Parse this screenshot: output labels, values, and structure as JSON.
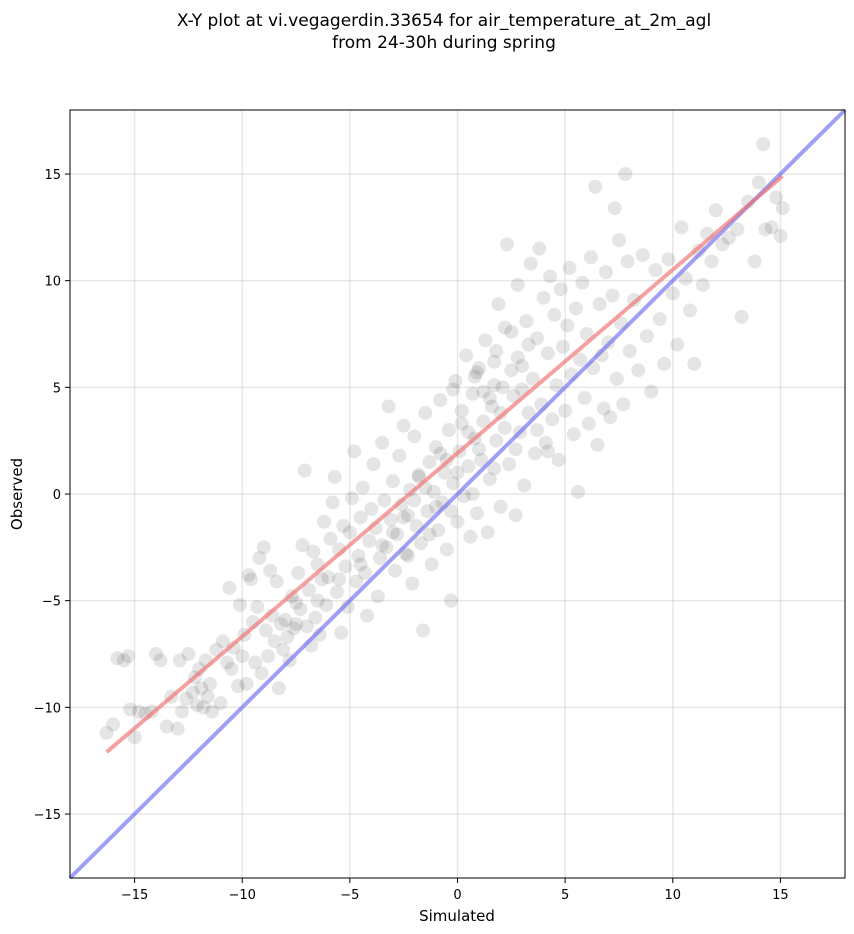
{
  "chart_data": {
    "type": "scatter",
    "title_line1": "X-Y plot at vi.vegagerdin.33654 for air_temperature_at_2m_agl",
    "title_line2": "from 24-30h during spring",
    "xlabel": "Simulated",
    "ylabel": "Observed",
    "xlim": [
      -18,
      18
    ],
    "ylim": [
      -18,
      18
    ],
    "xticks": [
      -15,
      -10,
      -5,
      0,
      5,
      10,
      15
    ],
    "yticks": [
      -15,
      -10,
      -5,
      0,
      5,
      10,
      15
    ],
    "xtick_labels": [
      "−15",
      "−10",
      "−5",
      "0",
      "5",
      "10",
      "15"
    ],
    "ytick_labels": [
      "−15",
      "−10",
      "−5",
      "0",
      "5",
      "10",
      "15"
    ],
    "grid": true,
    "point_color": "#000000",
    "point_opacity": 0.1,
    "points": [
      [
        -16.3,
        -11.2
      ],
      [
        -16.0,
        -10.8
      ],
      [
        -15.8,
        -7.7
      ],
      [
        -15.5,
        -7.8
      ],
      [
        -15.3,
        -7.6
      ],
      [
        -15.2,
        -10.1
      ],
      [
        -15.0,
        -11.4
      ],
      [
        -14.8,
        -10.2
      ],
      [
        -14.5,
        -10.3
      ],
      [
        -14.2,
        -10.2
      ],
      [
        -14.0,
        -7.5
      ],
      [
        -13.8,
        -7.8
      ],
      [
        -13.5,
        -10.9
      ],
      [
        -13.3,
        -9.5
      ],
      [
        -13.0,
        -11.0
      ],
      [
        -12.9,
        -7.8
      ],
      [
        -12.8,
        -10.2
      ],
      [
        -12.6,
        -9.6
      ],
      [
        -12.5,
        -7.5
      ],
      [
        -12.3,
        -9.3
      ],
      [
        -12.2,
        -8.6
      ],
      [
        -12.1,
        -9.9
      ],
      [
        -12.0,
        -8.2
      ],
      [
        -11.9,
        -9.1
      ],
      [
        -11.8,
        -10.0
      ],
      [
        -11.7,
        -7.8
      ],
      [
        -11.6,
        -9.5
      ],
      [
        -11.5,
        -8.9
      ],
      [
        -11.4,
        -10.2
      ],
      [
        -11.2,
        -7.3
      ],
      [
        -11.0,
        -9.8
      ],
      [
        -10.9,
        -6.9
      ],
      [
        -10.7,
        -7.9
      ],
      [
        -10.6,
        -4.4
      ],
      [
        -10.5,
        -8.2
      ],
      [
        -10.4,
        -7.2
      ],
      [
        -10.2,
        -9.0
      ],
      [
        -10.1,
        -5.2
      ],
      [
        -10.0,
        -7.6
      ],
      [
        -9.9,
        -6.6
      ],
      [
        -9.8,
        -8.9
      ],
      [
        -9.7,
        -3.8
      ],
      [
        -9.6,
        -4.0
      ],
      [
        -9.5,
        -6.0
      ],
      [
        -9.4,
        -7.9
      ],
      [
        -9.3,
        -5.3
      ],
      [
        -9.2,
        -3.0
      ],
      [
        -9.1,
        -8.4
      ],
      [
        -9.0,
        -2.5
      ],
      [
        -8.9,
        -6.4
      ],
      [
        -8.8,
        -7.6
      ],
      [
        -8.7,
        -3.6
      ],
      [
        -8.6,
        -5.7
      ],
      [
        -8.5,
        -6.9
      ],
      [
        -8.4,
        -4.1
      ],
      [
        -8.3,
        -9.1
      ],
      [
        -8.2,
        -6.1
      ],
      [
        -8.1,
        -7.3
      ],
      [
        -8.0,
        -5.9
      ],
      [
        -7.9,
        -6.7
      ],
      [
        -7.8,
        -7.8
      ],
      [
        -7.7,
        -4.8
      ],
      [
        -7.6,
        -6.3
      ],
      [
        -7.5,
        -5.1
      ],
      [
        -7.4,
        -3.7
      ],
      [
        -7.3,
        -5.4
      ],
      [
        -7.2,
        -2.4
      ],
      [
        -7.1,
        1.1
      ],
      [
        -7.0,
        -6.2
      ],
      [
        -6.9,
        -4.5
      ],
      [
        -6.8,
        -7.1
      ],
      [
        -6.7,
        -2.7
      ],
      [
        -6.6,
        -5.8
      ],
      [
        -6.5,
        -3.3
      ],
      [
        -6.4,
        -6.6
      ],
      [
        -6.3,
        -4.0
      ],
      [
        -6.2,
        -1.3
      ],
      [
        -6.1,
        -5.2
      ],
      [
        -6.0,
        -3.9
      ],
      [
        -5.9,
        -2.1
      ],
      [
        -5.8,
        -0.4
      ],
      [
        -5.7,
        0.8
      ],
      [
        -5.6,
        -4.6
      ],
      [
        -5.5,
        -2.6
      ],
      [
        -5.4,
        -6.5
      ],
      [
        -5.3,
        -1.5
      ],
      [
        -5.2,
        -3.4
      ],
      [
        -5.1,
        -5.3
      ],
      [
        -5.0,
        -1.8
      ],
      [
        -4.9,
        -0.2
      ],
      [
        -4.8,
        2.0
      ],
      [
        -4.7,
        -4.1
      ],
      [
        -4.6,
        -2.9
      ],
      [
        -4.5,
        -1.1
      ],
      [
        -4.4,
        0.3
      ],
      [
        -4.3,
        -3.7
      ],
      [
        -4.2,
        -5.7
      ],
      [
        -4.1,
        -2.2
      ],
      [
        -4.0,
        -0.7
      ],
      [
        -3.9,
        1.4
      ],
      [
        -3.8,
        -1.6
      ],
      [
        -3.7,
        -4.8
      ],
      [
        -3.6,
        -3.0
      ],
      [
        -3.5,
        2.4
      ],
      [
        -3.4,
        -0.3
      ],
      [
        -3.3,
        -2.5
      ],
      [
        -3.2,
        4.1
      ],
      [
        -3.1,
        -1.2
      ],
      [
        -3.0,
        0.6
      ],
      [
        -2.9,
        -3.6
      ],
      [
        -2.8,
        -1.9
      ],
      [
        -2.7,
        1.8
      ],
      [
        -2.6,
        -0.5
      ],
      [
        -2.5,
        3.2
      ],
      [
        -2.4,
        -2.8
      ],
      [
        -2.3,
        -1.0
      ],
      [
        -2.2,
        0.2
      ],
      [
        -2.1,
        -4.2
      ],
      [
        -2.0,
        2.7
      ],
      [
        -1.9,
        -1.5
      ],
      [
        -1.8,
        0.9
      ],
      [
        -1.7,
        -2.3
      ],
      [
        -1.6,
        -6.4
      ],
      [
        -1.5,
        3.8
      ],
      [
        -1.4,
        -0.8
      ],
      [
        -1.3,
        1.5
      ],
      [
        -1.2,
        -3.3
      ],
      [
        -1.1,
        0.1
      ],
      [
        -1.0,
        2.2
      ],
      [
        -0.9,
        -1.7
      ],
      [
        -0.8,
        4.4
      ],
      [
        -0.7,
        -0.4
      ],
      [
        -0.6,
        1.0
      ],
      [
        -0.5,
        -2.6
      ],
      [
        -0.4,
        3.0
      ],
      [
        -0.3,
        -5.0
      ],
      [
        -0.2,
        0.5
      ],
      [
        -0.1,
        5.3
      ],
      [
        0.0,
        -1.3
      ],
      [
        0.1,
        2.0
      ],
      [
        0.2,
        3.9
      ],
      [
        0.3,
        -0.1
      ],
      [
        0.4,
        6.5
      ],
      [
        0.5,
        1.3
      ],
      [
        0.6,
        -2.0
      ],
      [
        0.7,
        4.7
      ],
      [
        0.8,
        2.6
      ],
      [
        0.9,
        -0.9
      ],
      [
        1.0,
        5.9
      ],
      [
        1.1,
        1.6
      ],
      [
        1.2,
        3.4
      ],
      [
        1.3,
        7.2
      ],
      [
        1.4,
        -1.8
      ],
      [
        1.5,
        0.7
      ],
      [
        1.6,
        4.1
      ],
      [
        1.7,
        6.2
      ],
      [
        1.8,
        2.5
      ],
      [
        1.9,
        8.9
      ],
      [
        2.0,
        -0.6
      ],
      [
        2.1,
        5.0
      ],
      [
        2.2,
        3.1
      ],
      [
        2.3,
        11.7
      ],
      [
        2.4,
        1.4
      ],
      [
        2.5,
        7.6
      ],
      [
        2.6,
        4.6
      ],
      [
        2.7,
        -1.0
      ],
      [
        2.8,
        9.8
      ],
      [
        2.9,
        2.9
      ],
      [
        3.0,
        6.0
      ],
      [
        3.1,
        0.4
      ],
      [
        3.2,
        8.1
      ],
      [
        3.3,
        3.8
      ],
      [
        3.4,
        10.8
      ],
      [
        3.5,
        5.4
      ],
      [
        3.6,
        1.9
      ],
      [
        3.7,
        7.3
      ],
      [
        3.8,
        11.5
      ],
      [
        3.9,
        4.2
      ],
      [
        4.0,
        9.2
      ],
      [
        4.1,
        2.4
      ],
      [
        4.2,
        6.6
      ],
      [
        4.3,
        10.2
      ],
      [
        4.4,
        3.5
      ],
      [
        4.5,
        8.4
      ],
      [
        4.6,
        5.1
      ],
      [
        4.7,
        1.6
      ],
      [
        4.8,
        9.6
      ],
      [
        4.9,
        6.9
      ],
      [
        5.0,
        3.9
      ],
      [
        5.1,
        7.9
      ],
      [
        5.2,
        10.6
      ],
      [
        5.3,
        5.6
      ],
      [
        5.4,
        2.8
      ],
      [
        5.5,
        8.7
      ],
      [
        5.6,
        0.1
      ],
      [
        5.7,
        6.3
      ],
      [
        5.8,
        9.9
      ],
      [
        5.9,
        4.5
      ],
      [
        6.0,
        7.5
      ],
      [
        6.1,
        3.3
      ],
      [
        6.2,
        11.1
      ],
      [
        6.3,
        5.9
      ],
      [
        6.4,
        14.4
      ],
      [
        6.5,
        2.3
      ],
      [
        6.6,
        8.9
      ],
      [
        6.7,
        6.5
      ],
      [
        6.8,
        4.0
      ],
      [
        6.9,
        10.4
      ],
      [
        7.0,
        7.1
      ],
      [
        7.1,
        3.6
      ],
      [
        7.2,
        9.3
      ],
      [
        7.3,
        13.4
      ],
      [
        7.4,
        5.4
      ],
      [
        7.5,
        11.9
      ],
      [
        7.6,
        8.0
      ],
      [
        7.7,
        4.2
      ],
      [
        7.8,
        15.0
      ],
      [
        7.9,
        10.9
      ],
      [
        8.0,
        6.7
      ],
      [
        8.2,
        9.1
      ],
      [
        8.4,
        5.8
      ],
      [
        8.6,
        11.2
      ],
      [
        8.8,
        7.4
      ],
      [
        9.0,
        4.8
      ],
      [
        9.2,
        10.5
      ],
      [
        9.4,
        8.2
      ],
      [
        9.6,
        6.1
      ],
      [
        9.8,
        11.0
      ],
      [
        10.0,
        9.4
      ],
      [
        10.2,
        7.0
      ],
      [
        10.4,
        12.5
      ],
      [
        10.6,
        10.1
      ],
      [
        10.8,
        8.6
      ],
      [
        11.0,
        6.1
      ],
      [
        11.2,
        11.4
      ],
      [
        11.4,
        9.8
      ],
      [
        11.6,
        12.2
      ],
      [
        11.8,
        10.9
      ],
      [
        12.0,
        13.3
      ],
      [
        12.3,
        11.7
      ],
      [
        12.6,
        12.0
      ],
      [
        13.0,
        12.4
      ],
      [
        13.2,
        8.3
      ],
      [
        13.5,
        13.7
      ],
      [
        13.8,
        10.9
      ],
      [
        14.0,
        14.6
      ],
      [
        14.2,
        16.4
      ],
      [
        14.3,
        12.4
      ],
      [
        14.6,
        12.5
      ],
      [
        14.8,
        13.9
      ],
      [
        15.0,
        12.1
      ],
      [
        15.1,
        13.4
      ],
      [
        -3.0,
        -1.8
      ],
      [
        -2.0,
        -0.3
      ],
      [
        -1.0,
        -0.6
      ],
      [
        0.0,
        1.0
      ],
      [
        1.0,
        2.1
      ],
      [
        2.0,
        3.8
      ],
      [
        3.0,
        4.9
      ],
      [
        -1.5,
        0.3
      ],
      [
        -0.5,
        1.6
      ],
      [
        0.5,
        2.9
      ],
      [
        1.5,
        4.5
      ],
      [
        2.5,
        5.8
      ],
      [
        -2.5,
        -1.1
      ],
      [
        -3.5,
        -2.4
      ],
      [
        -4.5,
        -3.3
      ],
      [
        -5.5,
        -4.0
      ],
      [
        -6.5,
        -5.0
      ],
      [
        -7.5,
        -6.1
      ],
      [
        0.8,
        5.5
      ],
      [
        1.8,
        6.7
      ],
      [
        2.2,
        7.8
      ],
      [
        1.2,
        4.8
      ],
      [
        0.2,
        3.3
      ],
      [
        -0.8,
        1.9
      ],
      [
        -1.8,
        0.8
      ],
      [
        2.8,
        6.4
      ],
      [
        3.3,
        7.0
      ],
      [
        1.7,
        5.1
      ],
      [
        0.7,
        0.0
      ],
      [
        1.7,
        1.2
      ],
      [
        2.7,
        2.1
      ],
      [
        -0.3,
        -0.8
      ],
      [
        -1.3,
        -1.9
      ],
      [
        -2.3,
        -2.9
      ],
      [
        3.7,
        3.0
      ],
      [
        4.2,
        2.0
      ],
      [
        -0.2,
        4.9
      ],
      [
        0.9,
        5.7
      ]
    ],
    "fit_line": {
      "color": "#ef6f6f",
      "opacity": 0.65,
      "x": [
        -16.3,
        15.1
      ],
      "y": [
        -12.1,
        14.9
      ]
    },
    "identity_line": {
      "color": "#6b6bf0",
      "opacity": 0.65,
      "x": [
        -18,
        18
      ],
      "y": [
        -18,
        18
      ]
    }
  }
}
